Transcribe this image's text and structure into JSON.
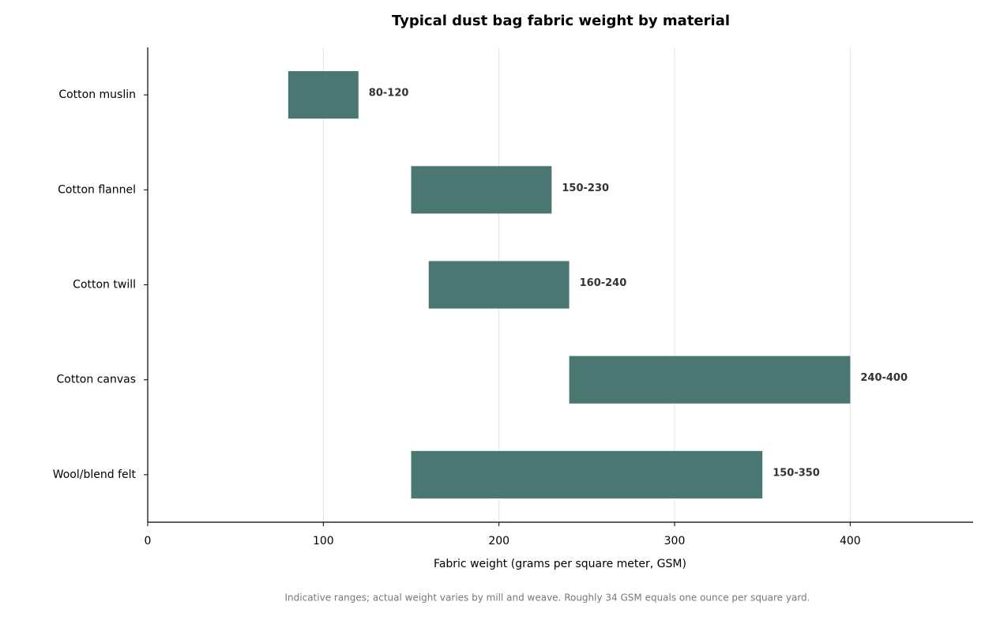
{
  "chart_data": {
    "type": "range-bar",
    "title": "Typical dust bag fabric weight by material",
    "x_label": "Fabric weight (grams per square meter, GSM)",
    "footnote": "Indicative ranges; actual weight varies by mill and weave. Roughly 34 GSM equals one ounce per square yard.",
    "categories": [
      "Cotton muslin",
      "Cotton flannel",
      "Cotton twill",
      "Cotton canvas",
      "Wool/blend felt"
    ],
    "low": [
      80,
      150,
      160,
      240,
      150
    ],
    "high": [
      120,
      230,
      240,
      400,
      350
    ],
    "value_labels": [
      "80-120",
      "150-230",
      "160-240",
      "240-400",
      "150-350"
    ],
    "color": "#4b7772",
    "xlim": [
      0,
      470
    ],
    "xticks": [
      0,
      100,
      200,
      300,
      400
    ],
    "grid": true
  }
}
